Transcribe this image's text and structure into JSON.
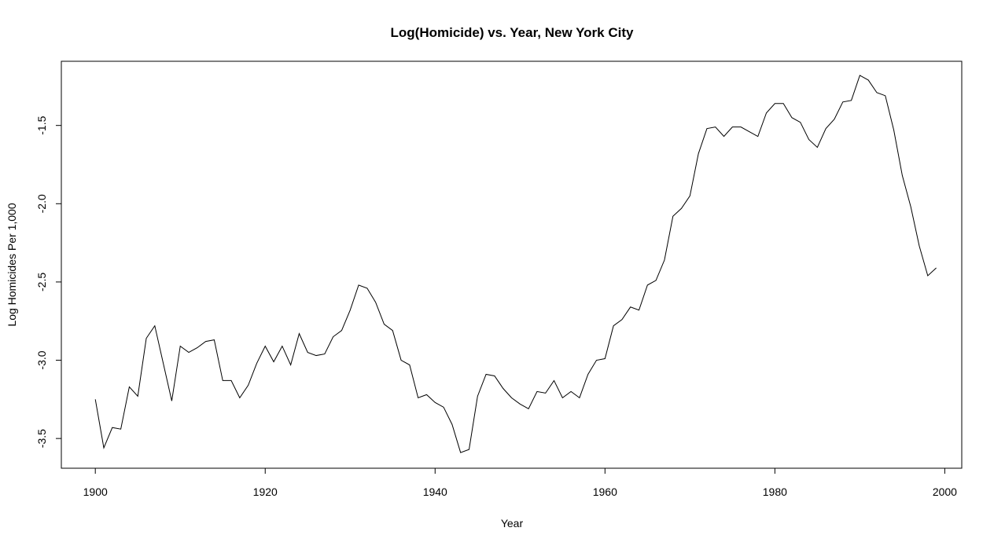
{
  "chart_data": {
    "type": "line",
    "title": "Log(Homicide) vs. Year, New York City",
    "xlabel": "Year",
    "ylabel": "Log Homicides Per 1,000",
    "xlim": [
      1896,
      2002
    ],
    "ylim": [
      -3.69,
      -1.09
    ],
    "x_ticks": [
      1900,
      1920,
      1940,
      1960,
      1980,
      2000
    ],
    "y_ticks": [
      -3.5,
      -3.0,
      -2.5,
      -2.0,
      -1.5
    ],
    "x_tick_labels": [
      "1900",
      "1920",
      "1940",
      "1960",
      "1980",
      "2000"
    ],
    "y_tick_labels": [
      "-3.5",
      "-3.0",
      "-2.5",
      "-2.0",
      "-1.5"
    ],
    "grid": false,
    "legend": "none",
    "line_color": "#000000",
    "series": [
      {
        "x": [
          1900,
          1901,
          1902,
          1903,
          1904,
          1905,
          1906,
          1907,
          1908,
          1909,
          1910,
          1911,
          1912,
          1913,
          1914,
          1915,
          1916,
          1917,
          1918,
          1919,
          1920,
          1921,
          1922,
          1923,
          1924,
          1925,
          1926,
          1927,
          1928,
          1929,
          1930,
          1931,
          1932,
          1933,
          1934,
          1935,
          1936,
          1937,
          1938,
          1939,
          1940,
          1941,
          1942,
          1943,
          1944,
          1945,
          1946,
          1947,
          1948,
          1949,
          1950,
          1951,
          1952,
          1953,
          1954,
          1955,
          1956,
          1957,
          1958,
          1959,
          1960,
          1961,
          1962,
          1963,
          1964,
          1965,
          1966,
          1967,
          1968,
          1969,
          1970,
          1971,
          1972,
          1973,
          1974,
          1975,
          1976,
          1977,
          1978,
          1979,
          1980,
          1981,
          1982,
          1983,
          1984,
          1985,
          1986,
          1987,
          1988,
          1989,
          1990,
          1991,
          1992,
          1993,
          1994,
          1995,
          1996,
          1997,
          1998,
          1999
        ],
        "values": [
          -3.25,
          -3.56,
          -3.43,
          -3.44,
          -3.17,
          -3.23,
          -2.86,
          -2.78,
          -3.02,
          -3.26,
          -2.91,
          -2.95,
          -2.92,
          -2.88,
          -2.87,
          -3.13,
          -3.13,
          -3.24,
          -3.16,
          -3.02,
          -2.91,
          -3.01,
          -2.91,
          -3.03,
          -2.83,
          -2.95,
          -2.97,
          -2.96,
          -2.85,
          -2.81,
          -2.68,
          -2.52,
          -2.54,
          -2.63,
          -2.77,
          -2.81,
          -3.0,
          -3.03,
          -3.24,
          -3.22,
          -3.27,
          -3.3,
          -3.41,
          -3.59,
          -3.57,
          -3.23,
          -3.09,
          -3.1,
          -3.18,
          -3.24,
          -3.28,
          -3.31,
          -3.2,
          -3.21,
          -3.13,
          -3.24,
          -3.2,
          -3.24,
          -3.09,
          -3.0,
          -2.99,
          -2.78,
          -2.74,
          -2.66,
          -2.68,
          -2.52,
          -2.49,
          -2.36,
          -2.08,
          -2.03,
          -1.95,
          -1.68,
          -1.52,
          -1.51,
          -1.57,
          -1.51,
          -1.51,
          -1.54,
          -1.57,
          -1.42,
          -1.36,
          -1.36,
          -1.45,
          -1.48,
          -1.59,
          -1.64,
          -1.52,
          -1.46,
          -1.35,
          -1.34,
          -1.18,
          -1.21,
          -1.29,
          -1.31,
          -1.53,
          -1.82,
          -2.02,
          -2.27,
          -2.46,
          -2.41
        ]
      }
    ]
  }
}
